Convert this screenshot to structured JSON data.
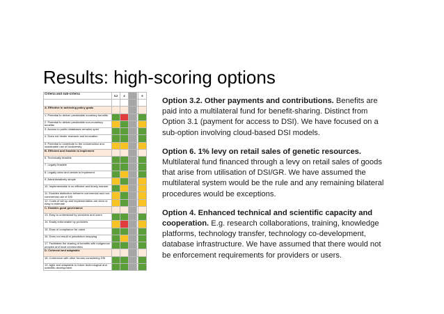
{
  "slide": {
    "title": "Results: high-scoring options"
  },
  "table": {
    "header_label": "Criteria and sub-criteria",
    "columns": [
      "3.2",
      "4",
      "",
      "6"
    ],
    "rows": [
      {
        "label": "",
        "section": false,
        "cells": [
          "blank",
          "blank",
          "grey",
          "blank"
        ]
      },
      {
        "label": "A. Effective in achieving policy goals",
        "section": true,
        "cells": [
          "blank",
          "blank",
          "grey",
          "blank"
        ]
      },
      {
        "label": "1. Potential to deliver predictable monetary benefits",
        "section": false,
        "cells": [
          "green",
          "red",
          "grey",
          "green"
        ]
      },
      {
        "label": "2. Potential to deliver predictable non-monetary benefits",
        "section": false,
        "cells": [
          "yellow",
          "green",
          "grey",
          "yellow"
        ]
      },
      {
        "label": "3. Access to public databases remains open",
        "section": false,
        "cells": [
          "green",
          "green",
          "grey",
          "green"
        ]
      },
      {
        "label": "4. Does not hinder research and innovation",
        "section": false,
        "cells": [
          "green",
          "green",
          "grey",
          "green"
        ]
      },
      {
        "label": "5. Potential to contribute to the conservation and sustainable use of biodiversity",
        "section": false,
        "cells": [
          "yellow",
          "yellow",
          "grey",
          "yellow"
        ]
      },
      {
        "label": "B. Efficient and feasible to implement",
        "section": true,
        "cells": [
          "blank",
          "blank",
          "grey",
          "blank"
        ]
      },
      {
        "label": "6. Technically feasible",
        "section": false,
        "cells": [
          "green",
          "green",
          "grey",
          "green"
        ]
      },
      {
        "label": "7. Legally feasible",
        "section": false,
        "cells": [
          "green",
          "green",
          "grey",
          "green"
        ]
      },
      {
        "label": "8. Legally clear and certain to implement",
        "section": false,
        "cells": [
          "green",
          "yellow",
          "grey",
          "green"
        ]
      },
      {
        "label": "9. Administratively simple",
        "section": false,
        "cells": [
          "yellow",
          "green",
          "grey",
          "yellow"
        ]
      },
      {
        "label": "10. Implementable in an efficient and timely manner",
        "section": false,
        "cells": [
          "green",
          "yellow",
          "grey",
          "yellow"
        ]
      },
      {
        "label": "11. Enables distinction between commercial and non-commercial use of DSI",
        "section": false,
        "cells": [
          "yellow",
          "green",
          "grey",
          "yellow"
        ]
      },
      {
        "label": "12. Costs of set up and implementation are clear or easy to estimate",
        "section": false,
        "cells": [
          "yellow",
          "green",
          "grey",
          "yellow"
        ]
      },
      {
        "label": "C. Enables good governance",
        "section": true,
        "cells": [
          "blank",
          "blank",
          "grey",
          "blank"
        ]
      },
      {
        "label": "13. Easy to understand by providers and users",
        "section": false,
        "cells": [
          "green",
          "green",
          "grey",
          "green"
        ]
      },
      {
        "label": "14. Easily enforceable by providers",
        "section": false,
        "cells": [
          "yellow",
          "red",
          "grey",
          "yellow"
        ]
      },
      {
        "label": "15. Ease of compliance for users",
        "section": false,
        "cells": [
          "green",
          "green",
          "grey",
          "green"
        ]
      },
      {
        "label": "16. Does not result in jurisdiction shopping",
        "section": false,
        "cells": [
          "green",
          "yellow",
          "grey",
          "green"
        ]
      },
      {
        "label": "17. Facilitates the sharing of benefits with indigenous peoples and local communities",
        "section": false,
        "cells": [
          "green",
          "green",
          "grey",
          "green"
        ]
      },
      {
        "label": "D. Coherent and adaptable",
        "section": true,
        "cells": [
          "blank",
          "blank",
          "grey",
          "blank"
        ]
      },
      {
        "label": "18. Coherence with other forums considering DSI",
        "section": false,
        "cells": [
          "green",
          "green",
          "grey",
          "green"
        ]
      },
      {
        "label": "19. Agile and adaptable to future technological and scientific development",
        "section": false,
        "cells": [
          "green",
          "green",
          "grey",
          "green"
        ]
      }
    ]
  },
  "options": [
    {
      "heading": "Option 3.2. Other payments and contributions.",
      "body": " Benefits are paid into a multilateral fund for benefit-sharing. Distinct from Option 3.1 (payment for access to DSI). We have focused on a sub-option involving cloud-based DSI models."
    },
    {
      "heading": "Option 6. 1% levy on retail sales of genetic resources.",
      "body": " Multilateral fund financed through a levy on retail sales of goods that arise from utilisation of DSI/GR. We have assumed the multilateral system would be the rule and any remaining bilateral procedures would be exceptions."
    },
    {
      "heading": "Option 4. Enhanced technical and scientific capacity and cooperation.",
      "body": " E.g. research collaborations, training, knowledge platforms, technology transfer, technology co-development, database infrastructure. We have assumed that there would not be enforcement requirements for providers or users."
    }
  ],
  "colors": {
    "green": "#5a9e3a",
    "yellow": "#f9c423",
    "red": "#e03c3c",
    "grey": "#a6a6a6",
    "section_bg": "#fde9d9"
  }
}
